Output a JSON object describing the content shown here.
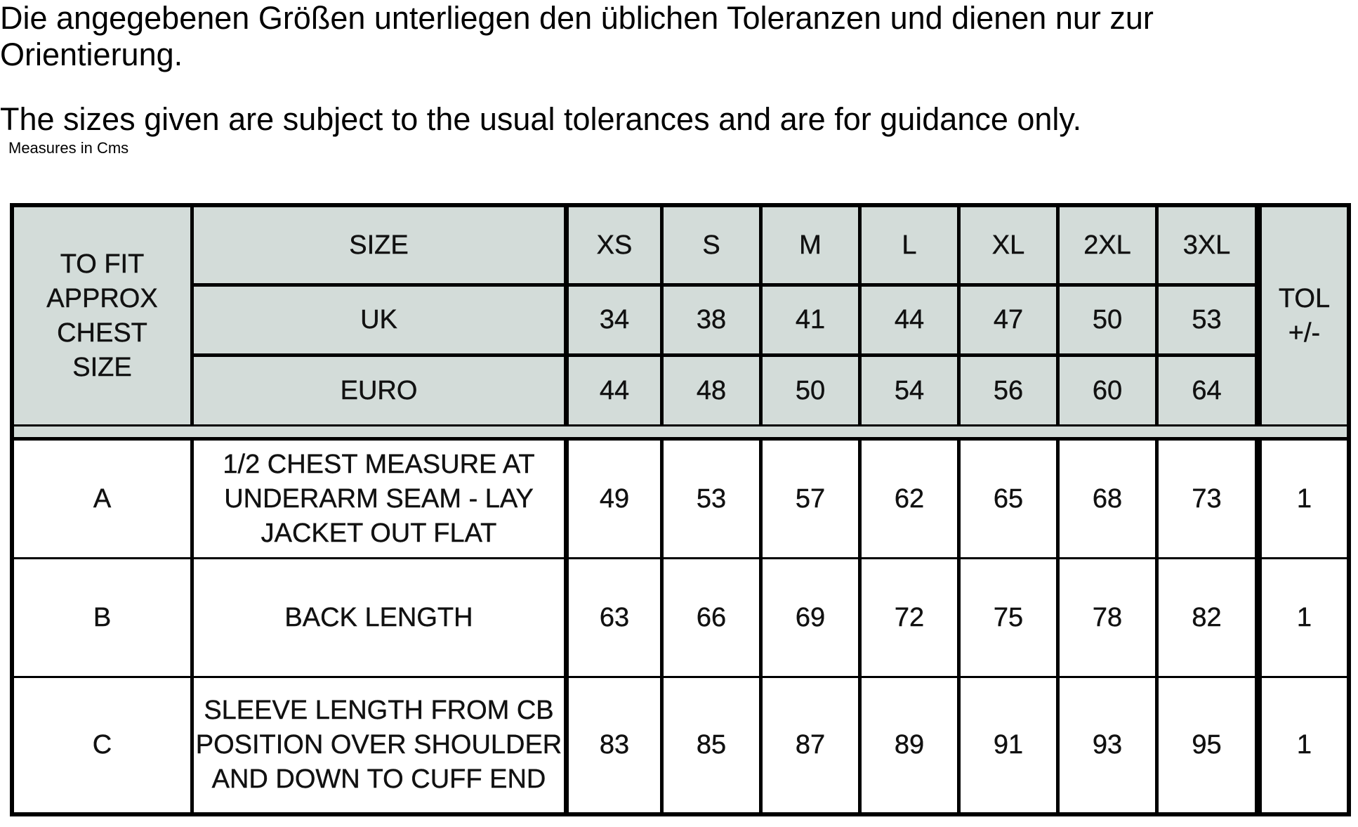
{
  "intro": {
    "german": "Die angegebenen Größen unterliegen den üblichen Toleranzen und dienen nur zur Orientierung.",
    "english": "The sizes given are subject to the usual tolerances and are for guidance only.",
    "measures_note": "Measures in Cms"
  },
  "table": {
    "corner_label": "TO FIT APPROX CHEST SIZE",
    "tol_label": "TOL +/-",
    "header_rows": [
      {
        "label": "SIZE",
        "values": [
          "XS",
          "S",
          "M",
          "L",
          "XL",
          "2XL",
          "3XL"
        ]
      },
      {
        "label": "UK",
        "values": [
          "34",
          "38",
          "41",
          "44",
          "47",
          "50",
          "53"
        ]
      },
      {
        "label": "EURO",
        "values": [
          "44",
          "48",
          "50",
          "54",
          "56",
          "60",
          "64"
        ]
      }
    ],
    "rows": [
      {
        "code": "A",
        "description": "1/2 CHEST MEASURE AT UNDERARM SEAM - LAY JACKET OUT FLAT",
        "values": [
          "49",
          "53",
          "57",
          "62",
          "65",
          "68",
          "73"
        ],
        "tol": "1"
      },
      {
        "code": "B",
        "description": "BACK LENGTH",
        "values": [
          "63",
          "66",
          "69",
          "72",
          "75",
          "78",
          "82"
        ],
        "tol": "1"
      },
      {
        "code": "C",
        "description": "SLEEVE LENGTH FROM CB POSITION OVER SHOULDER AND DOWN TO CUFF END",
        "values": [
          "83",
          "85",
          "87",
          "89",
          "91",
          "93",
          "95"
        ],
        "tol": "1"
      }
    ]
  }
}
